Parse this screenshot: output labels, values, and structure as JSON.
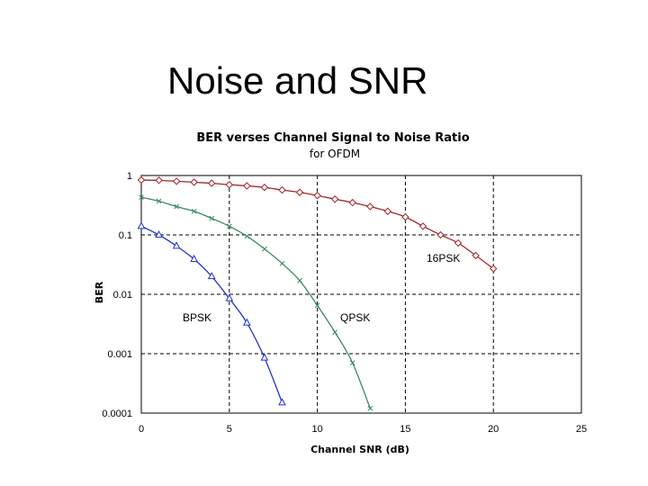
{
  "slide": {
    "title": "Noise and SNR"
  },
  "chart_data": {
    "type": "line",
    "title": "BER verses Channel Signal to Noise Ratio",
    "subtitle": "for OFDM",
    "xlabel": "Channel SNR (dB)",
    "ylabel": "BER",
    "xlim": [
      0,
      25
    ],
    "ylim": [
      0.0001,
      1
    ],
    "yscale": "log",
    "grid": true,
    "x_ticks": [
      "0",
      "5",
      "10",
      "15",
      "20",
      "25"
    ],
    "y_ticks": [
      "1",
      "0.1",
      "0.01",
      "0.001",
      "0.0001"
    ],
    "series": [
      {
        "name": "16PSK",
        "color": "#a0282a",
        "marker": "diamond",
        "x": [
          0,
          1,
          2,
          3,
          4,
          5,
          6,
          7,
          8,
          9,
          10,
          11,
          12,
          13,
          14,
          15,
          16,
          17,
          18,
          19,
          20
        ],
        "y": [
          0.84,
          0.83,
          0.8,
          0.77,
          0.74,
          0.7,
          0.67,
          0.63,
          0.57,
          0.52,
          0.46,
          0.4,
          0.35,
          0.3,
          0.25,
          0.2,
          0.14,
          0.1,
          0.073,
          0.045,
          0.027
        ]
      },
      {
        "name": "QPSK",
        "color": "#3a8a60",
        "marker": "x",
        "x": [
          0,
          1,
          2,
          3,
          4,
          5,
          6,
          7,
          8,
          9,
          10,
          11,
          12,
          13
        ],
        "y": [
          0.43,
          0.37,
          0.3,
          0.25,
          0.19,
          0.14,
          0.095,
          0.058,
          0.033,
          0.017,
          0.0065,
          0.0023,
          0.0007,
          0.00012
        ]
      },
      {
        "name": "BPSK",
        "color": "#2233cc",
        "marker": "triangle",
        "x": [
          0,
          1,
          2,
          3,
          4,
          5,
          6,
          7,
          8
        ],
        "y": [
          0.14,
          0.1,
          0.065,
          0.039,
          0.02,
          0.0085,
          0.0033,
          0.00085,
          0.00015
        ]
      }
    ]
  }
}
